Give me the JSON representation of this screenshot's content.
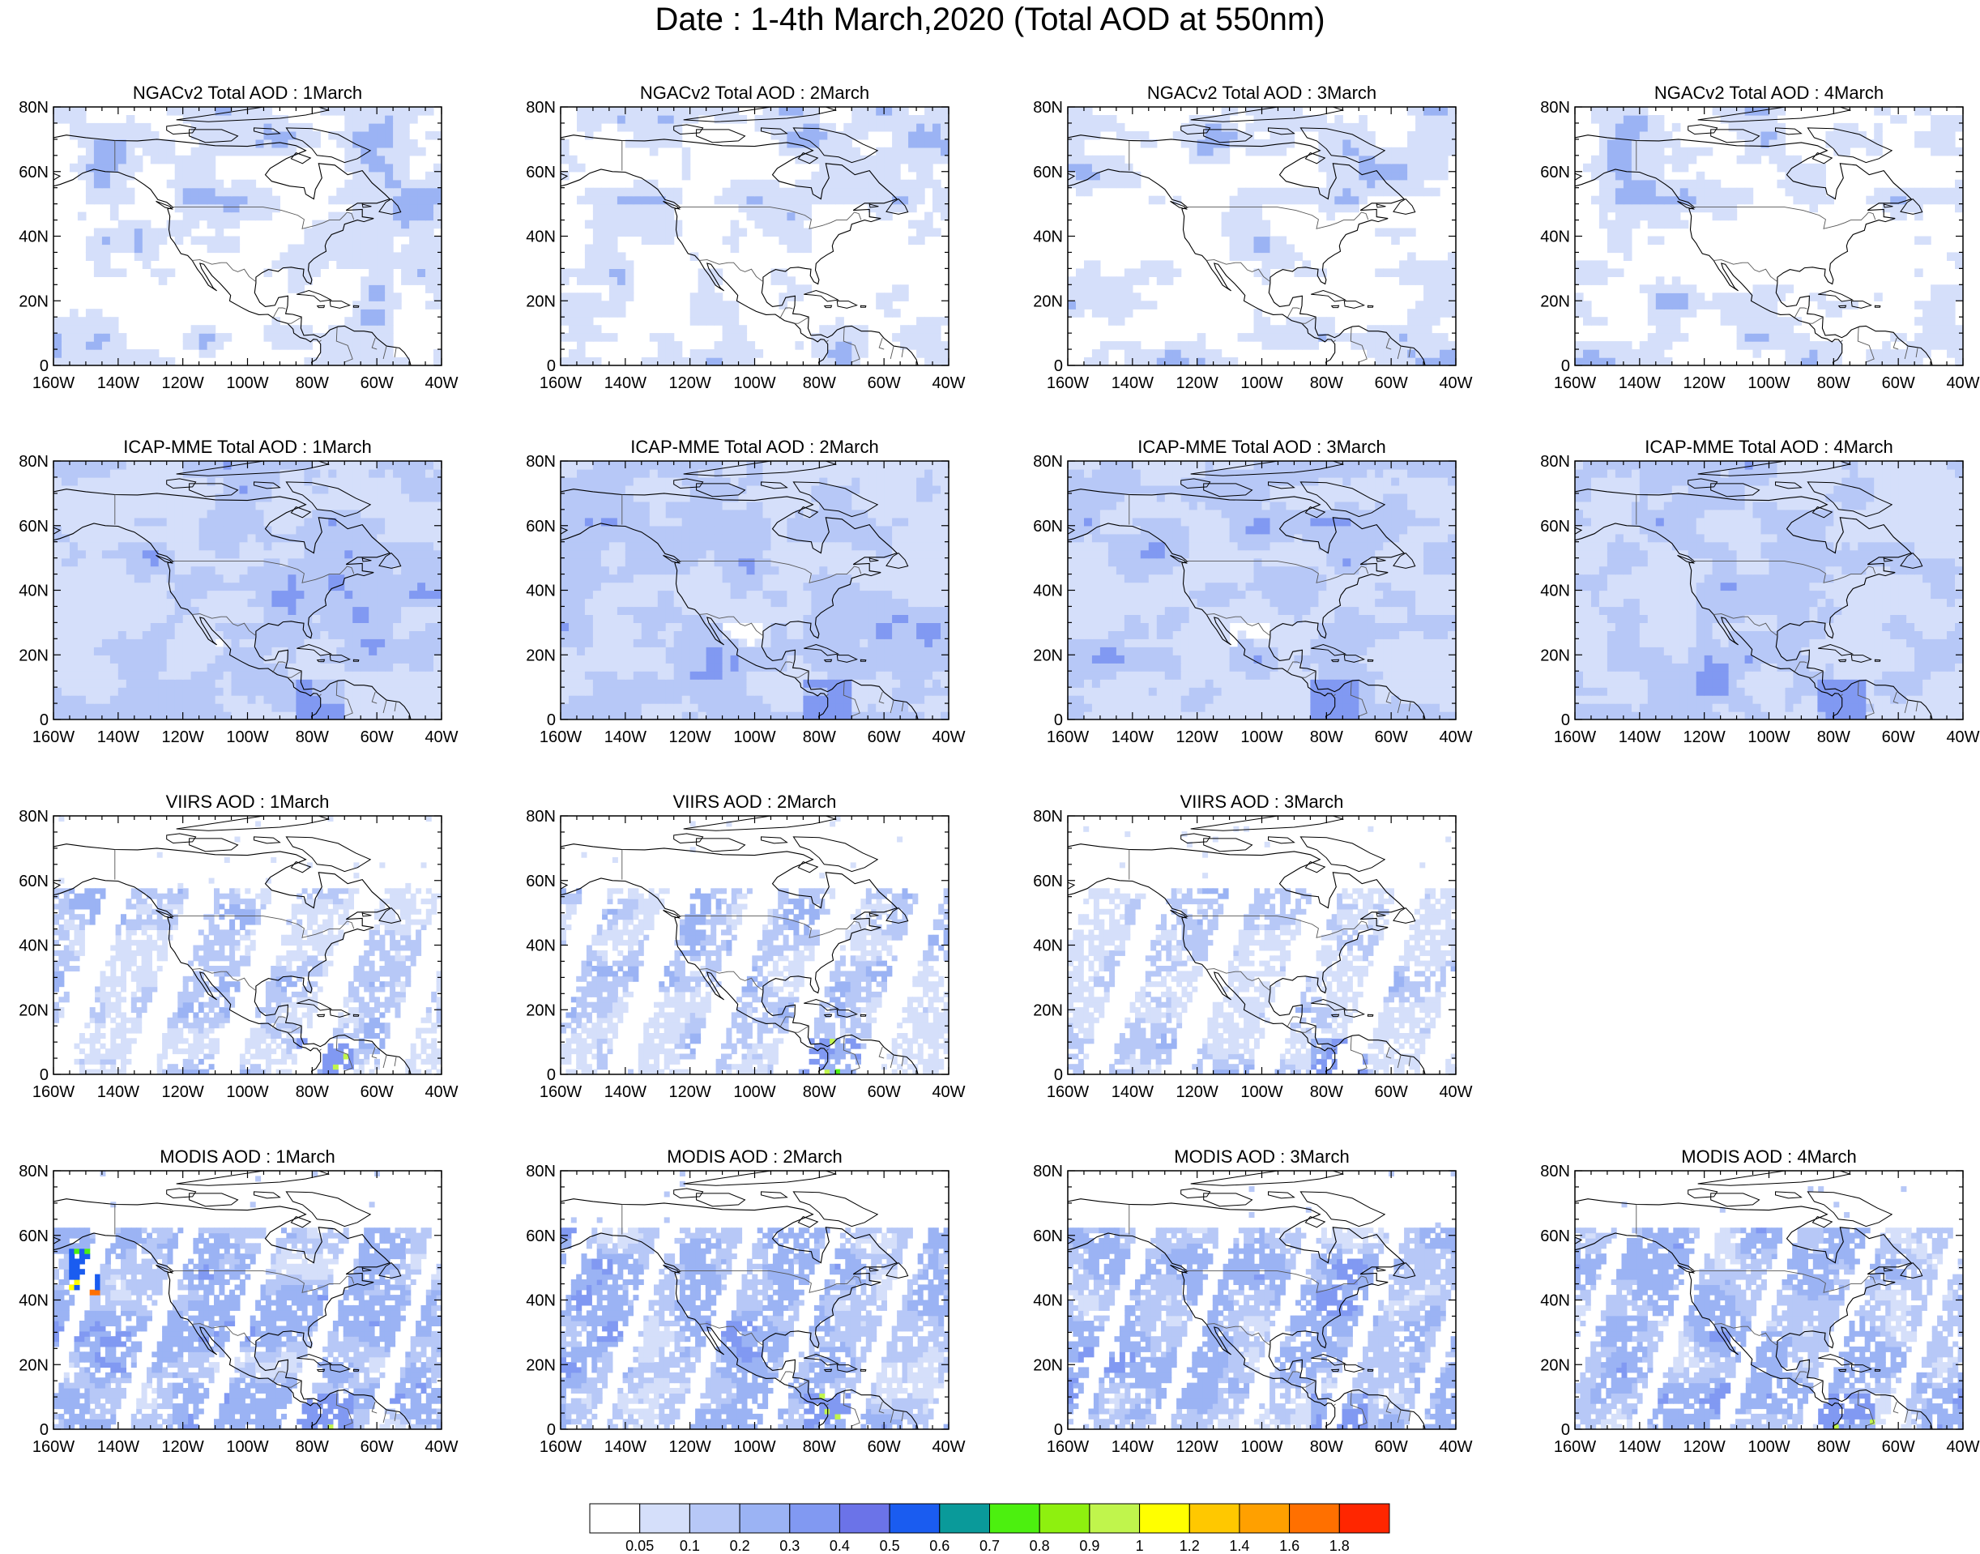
{
  "title": "Date : 1-4th March,2020 (Total AOD at 550nm)",
  "lat_ticks": [
    "80N",
    "60N",
    "40N",
    "20N",
    "0"
  ],
  "lon_ticks": [
    "160W",
    "140W",
    "120W",
    "100W",
    "80W",
    "60W",
    "40W"
  ],
  "rows": [
    {
      "dataset": "NGACv2",
      "panels": [
        {
          "title": "NGACv2 Total AOD : 1March"
        },
        {
          "title": "NGACv2 Total AOD : 2March"
        },
        {
          "title": "NGACv2 Total AOD : 3March"
        },
        {
          "title": "NGACv2 Total AOD : 4March"
        }
      ]
    },
    {
      "dataset": "ICAP-MME",
      "panels": [
        {
          "title": "ICAP-MME Total AOD : 1March"
        },
        {
          "title": "ICAP-MME Total AOD : 2March"
        },
        {
          "title": "ICAP-MME Total AOD : 3March"
        },
        {
          "title": "ICAP-MME Total AOD : 4March"
        }
      ]
    },
    {
      "dataset": "VIIRS",
      "panels": [
        {
          "title": "VIIRS AOD : 1March"
        },
        {
          "title": "VIIRS AOD : 2March"
        },
        {
          "title": "VIIRS AOD : 3March"
        },
        null
      ]
    },
    {
      "dataset": "MODIS",
      "panels": [
        {
          "title": "MODIS AOD : 1March"
        },
        {
          "title": "MODIS AOD : 2March"
        },
        {
          "title": "MODIS AOD : 3March"
        },
        {
          "title": "MODIS AOD : 4March"
        }
      ]
    }
  ],
  "colorbar": {
    "labels": [
      "0.05",
      "0.1",
      "0.2",
      "0.3",
      "0.4",
      "0.5",
      "0.6",
      "0.7",
      "0.8",
      "0.9",
      "1",
      "1.2",
      "1.4",
      "1.6",
      "1.8"
    ],
    "colors": [
      "#ffffff",
      "#d5dffa",
      "#b7c8f7",
      "#9bb3f4",
      "#8199f2",
      "#6b73e8",
      "#1a5cf0",
      "#0a9a9a",
      "#4cf00f",
      "#8ef00f",
      "#c0f54c",
      "#ffff00",
      "#ffc800",
      "#ffa000",
      "#ff7000",
      "#ff2600"
    ]
  }
}
